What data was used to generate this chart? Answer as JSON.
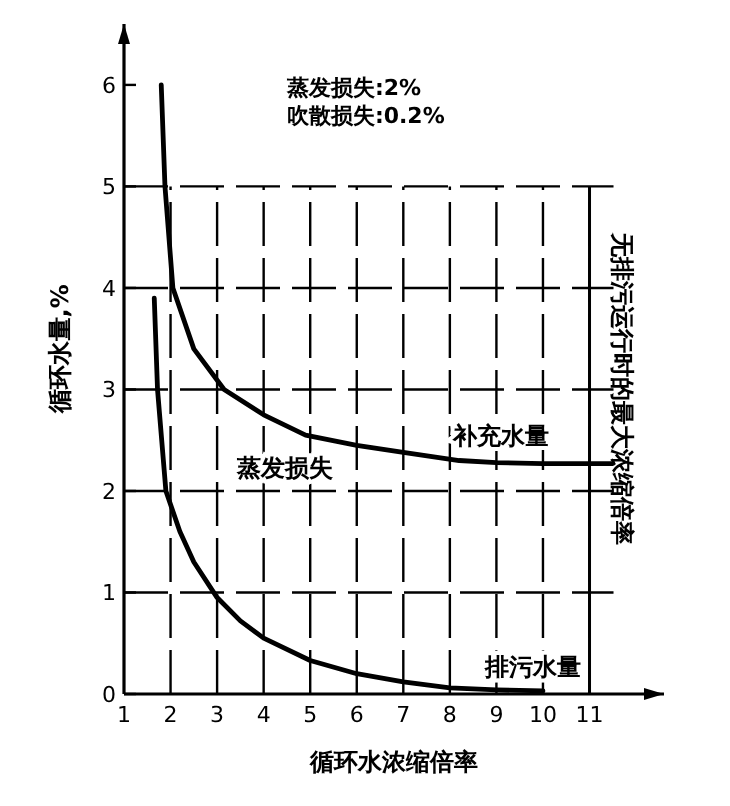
{
  "chart_data": {
    "type": "line",
    "xlabel": "循环水浓缩倍率",
    "ylabel": "循环水量,%",
    "xlim": [
      1,
      12.6
    ],
    "ylim": [
      0,
      6.6
    ],
    "xticks": [
      1,
      2,
      3,
      4,
      5,
      6,
      7,
      8,
      9,
      10,
      11
    ],
    "yticks": [
      0,
      1,
      2,
      3,
      4,
      5,
      6
    ],
    "grid": true,
    "marker": "none",
    "series": [
      {
        "name": "补充水量",
        "color": "#000000",
        "x": [
          1.8,
          1.88,
          2.05,
          2.5,
          3.15,
          4,
          4.9,
          6,
          7,
          8.2,
          9,
          10,
          11.5
        ],
        "values": [
          6.0,
          5.0,
          4.0,
          3.4,
          3.0,
          2.75,
          2.55,
          2.45,
          2.38,
          2.3,
          2.28,
          2.27,
          2.27
        ]
      },
      {
        "name": "排污水量",
        "color": "#000000",
        "x": [
          1.65,
          1.72,
          1.9,
          2.2,
          2.5,
          3,
          3.5,
          4,
          5,
          6,
          7,
          8,
          9,
          10
        ],
        "values": [
          3.9,
          3.0,
          2.0,
          1.6,
          1.3,
          0.95,
          0.72,
          0.55,
          0.33,
          0.2,
          0.12,
          0.06,
          0.04,
          0.03
        ]
      }
    ],
    "annotations": [
      "蒸发损失:2%",
      "吹散损失:0.2%",
      "蒸发损失"
    ],
    "ref_lines": [
      {
        "axis": "x",
        "value": 11,
        "label": "无排污运行时的最大浓缩倍率"
      }
    ]
  }
}
